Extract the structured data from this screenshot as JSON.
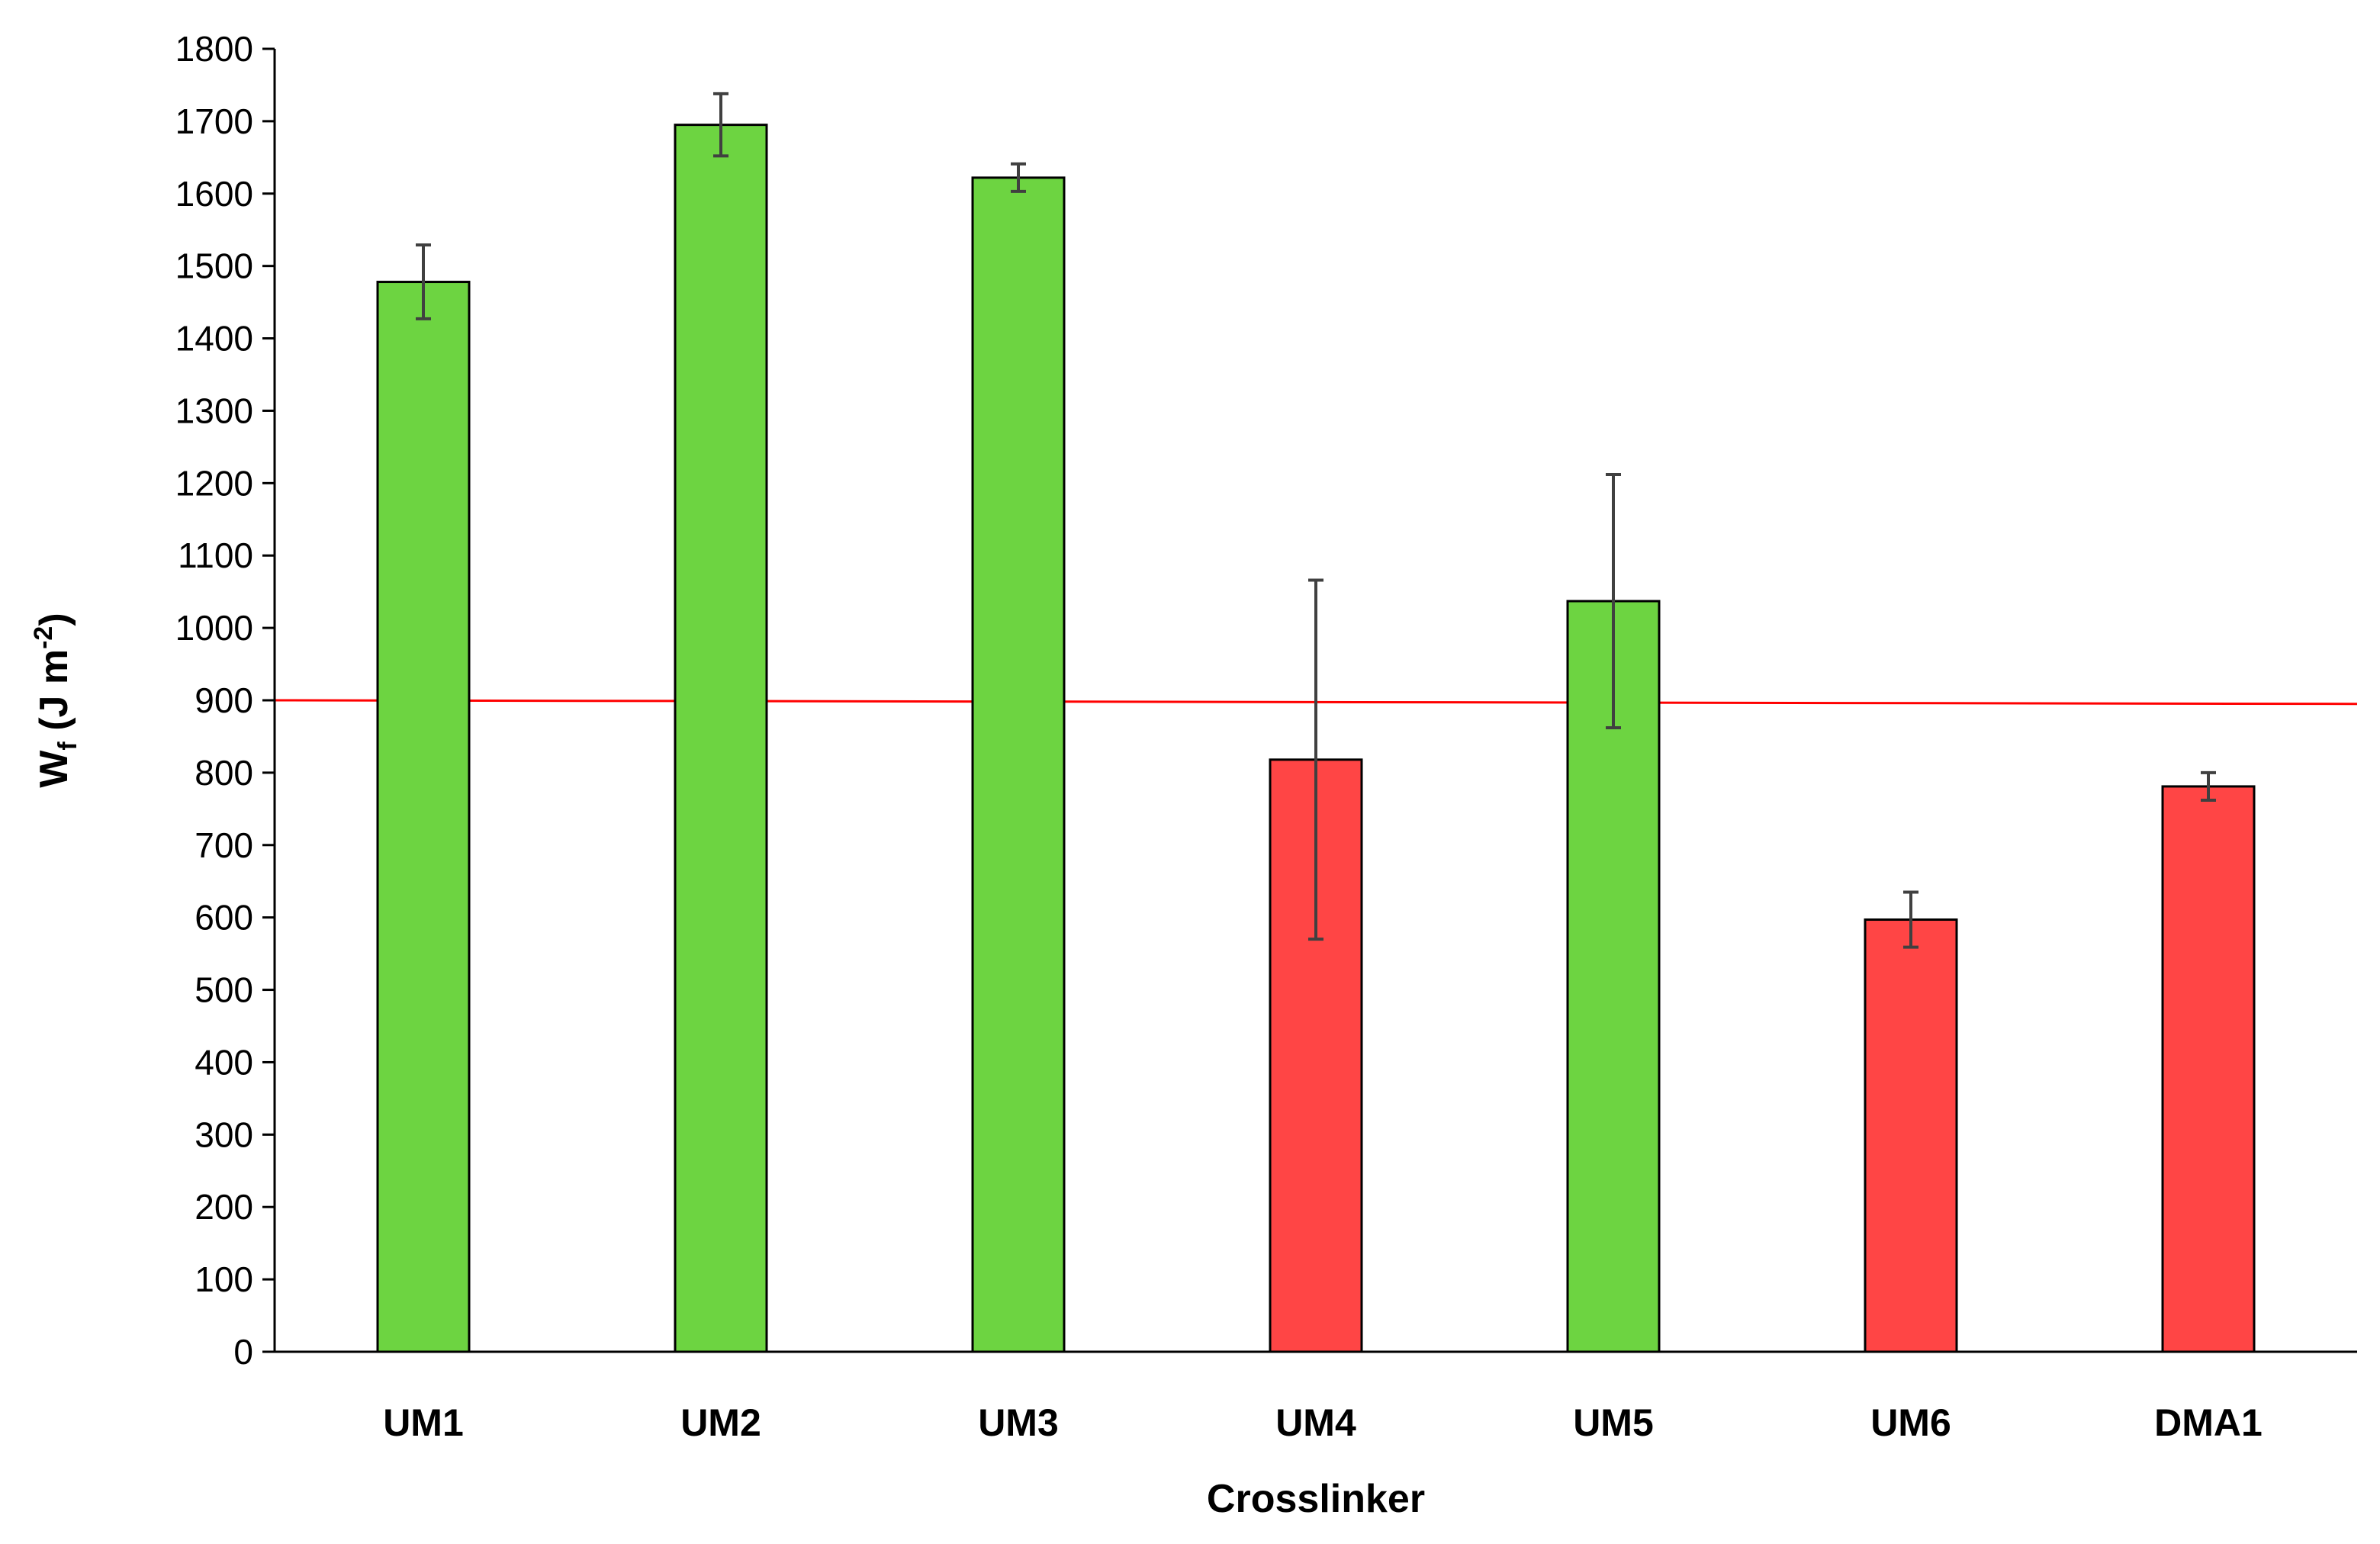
{
  "chart_data": {
    "type": "bar",
    "title": "",
    "xlabel": "Crosslinker",
    "ylabel": {
      "main": "W",
      "subscript": "f",
      "unit_prefix": " (J m",
      "unit_superscript": "-2",
      "unit_suffix": ")"
    },
    "ylim": [
      0,
      1800
    ],
    "yticks": [
      0,
      100,
      200,
      300,
      400,
      500,
      600,
      700,
      800,
      900,
      1000,
      1100,
      1200,
      1300,
      1400,
      1500,
      1600,
      1700,
      1800
    ],
    "grid": false,
    "legend": "none",
    "categories": [
      "UM1",
      "UM2",
      "UM3",
      "UM4",
      "UM5",
      "UM6",
      "DMA1"
    ],
    "values": [
      1478,
      1695,
      1622,
      818,
      1037,
      597,
      781
    ],
    "error_bars": [
      51,
      43,
      19,
      248,
      175,
      38,
      19
    ],
    "bar_colors": [
      "#6dd441",
      "#6dd441",
      "#6dd441",
      "#ff4545",
      "#6dd441",
      "#ff4545",
      "#ff4545"
    ],
    "reference_line": {
      "y_start": 900,
      "y_end": 895,
      "color": "#ff0000"
    },
    "colors": {
      "above_threshold": "#6dd441",
      "below_threshold": "#ff4545",
      "axis": "#000000",
      "error_bar": "#404040"
    }
  }
}
